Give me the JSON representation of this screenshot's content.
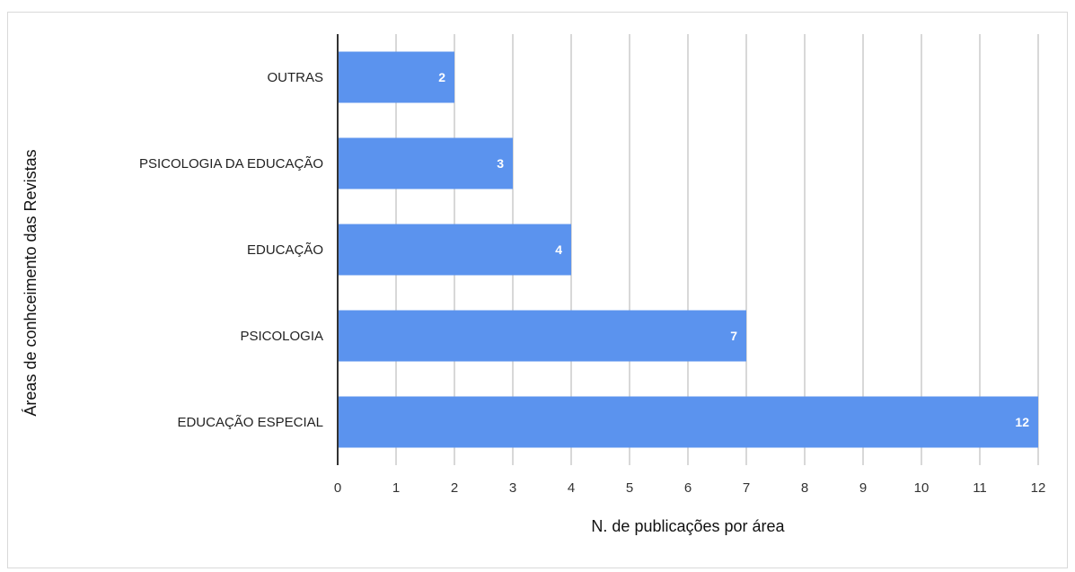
{
  "chart_data": {
    "type": "bar",
    "orientation": "horizontal",
    "title": "",
    "xlabel": "N. de publicações por área",
    "ylabel": "Áreas de conhceimento das Revistas",
    "categories": [
      "OUTRAS",
      "PSICOLOGIA DA EDUCAÇÃO",
      "EDUCAÇÃO",
      "PSICOLOGIA",
      "EDUCAÇÃO ESPECIAL"
    ],
    "values": [
      2,
      3,
      4,
      7,
      12
    ],
    "data_labels": [
      "2",
      "3",
      "4",
      "7",
      "12"
    ],
    "xlim": [
      0,
      12
    ],
    "xticks": [
      "0",
      "1",
      "2",
      "3",
      "4",
      "5",
      "6",
      "7",
      "8",
      "9",
      "10",
      "11",
      "12"
    ],
    "grid": true,
    "legend": "none",
    "colors": {
      "bar": "#5b93ee",
      "grid": "#cccccc",
      "axis": "#333333"
    }
  }
}
